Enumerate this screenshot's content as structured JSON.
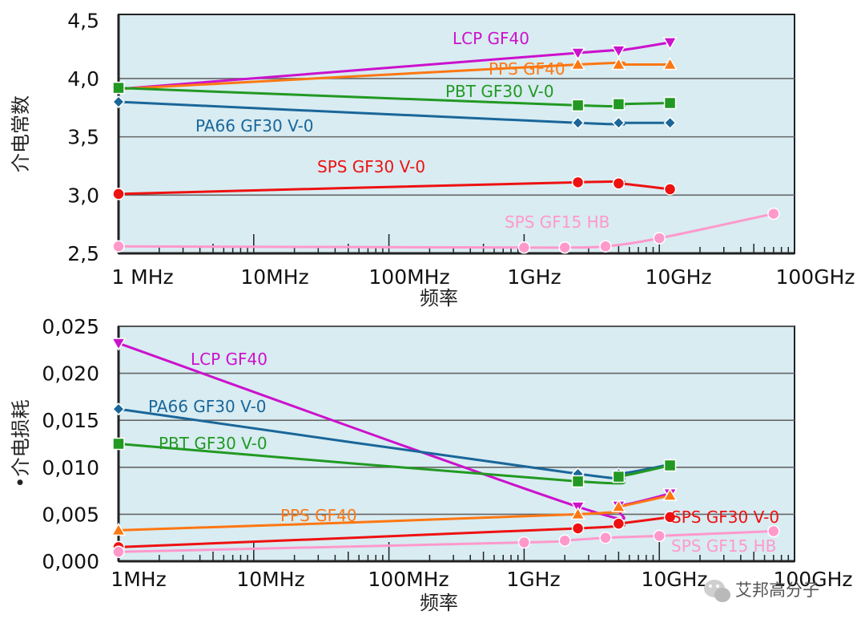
{
  "chart_data": [
    {
      "type": "line",
      "ylabel": "介电常数",
      "xlabel": "频率",
      "x_scale": "log",
      "xlim": [
        "1 MHz",
        "100GHz"
      ],
      "x_tick_labels": [
        "1 MHz",
        "10MHz",
        "100MHz",
        "1GHz",
        "10GHz",
        "100GHz"
      ],
      "y_tick_labels": [
        "2,5",
        "3,0",
        "3,5",
        "4,0",
        "4,5"
      ],
      "ylim": [
        2.5,
        4.55
      ],
      "grid": "horizontal",
      "series": [
        {
          "name": "LCP GF40",
          "color": "#cc11cc",
          "marker": "triangle-down",
          "x": [
            "1 MHz",
            "2.5GHz",
            "5GHz",
            "12GHz"
          ],
          "y": [
            3.91,
            4.22,
            4.24,
            4.31
          ],
          "marked": [
            false,
            true,
            true,
            true
          ]
        },
        {
          "name": "PPS GF40",
          "color": "#ff7711",
          "marker": "triangle-up",
          "x": [
            "1 MHz",
            "2.5GHz",
            "5GHz",
            "12GHz"
          ],
          "y": [
            3.91,
            4.12,
            4.12,
            4.12
          ],
          "marked": [
            false,
            true,
            true,
            true
          ]
        },
        {
          "name": "PBT GF30 V-0",
          "color": "#229922",
          "marker": "square",
          "x": [
            "1 MHz",
            "2.5GHz",
            "5GHz",
            "12GHz"
          ],
          "y": [
            3.92,
            3.77,
            3.78,
            3.79
          ],
          "marked": [
            true,
            true,
            true,
            true
          ]
        },
        {
          "name": "PA66 GF30 V-0",
          "color": "#1a6699",
          "marker": "diamond",
          "x": [
            "1 MHz",
            "2.5GHz",
            "5GHz",
            "12GHz"
          ],
          "y": [
            3.8,
            3.62,
            3.62,
            3.62
          ],
          "marked": [
            true,
            true,
            true,
            true
          ]
        },
        {
          "name": "SPS GF30 V-0",
          "color": "#ee1111",
          "marker": "circle",
          "x": [
            "1 MHz",
            "2.5GHz",
            "5GHz",
            "12GHz"
          ],
          "y": [
            3.01,
            3.11,
            3.1,
            3.05
          ],
          "marked": [
            true,
            true,
            true,
            true
          ]
        },
        {
          "name": "SPS GF15 HB",
          "color": "#ff99cc",
          "marker": "circle",
          "x": [
            "1 MHz",
            "1GHz",
            "2GHz",
            "4GHz",
            "10GHz",
            "70GHz"
          ],
          "y": [
            2.56,
            2.55,
            2.55,
            2.56,
            2.63,
            2.84
          ],
          "marked": [
            true,
            true,
            true,
            true,
            true,
            true
          ]
        }
      ]
    },
    {
      "type": "line",
      "ylabel": "•介电损耗",
      "xlabel": "频率",
      "x_scale": "log",
      "xlim": [
        "1MHz",
        "100GHz"
      ],
      "x_tick_labels": [
        "1MHz",
        "10MHz",
        "100MHz",
        "1GHz",
        "10GHz",
        "100GHz"
      ],
      "y_tick_labels": [
        "0,000",
        "0,005",
        "0,010",
        "0,015",
        "0,020",
        "0,025"
      ],
      "ylim": [
        0.0,
        0.025
      ],
      "grid": "horizontal",
      "series": [
        {
          "name": "LCP GF40",
          "color": "#cc11cc",
          "marker": "triangle-down",
          "x": [
            "1MHz",
            "2.5GHz",
            "5GHz",
            "12GHz"
          ],
          "y": [
            0.0232,
            0.0058,
            0.0059,
            0.0072
          ],
          "marked": [
            true,
            true,
            true,
            true
          ]
        },
        {
          "name": "PA66 GF30 V-0",
          "color": "#1a6699",
          "marker": "diamond",
          "x": [
            "1MHz",
            "2.5GHz",
            "5GHz",
            "12GHz"
          ],
          "y": [
            0.0162,
            0.0093,
            0.0093,
            0.0103
          ],
          "marked": [
            true,
            true,
            true,
            true
          ]
        },
        {
          "name": "PBT GF30 V-0",
          "color": "#229922",
          "marker": "square",
          "x": [
            "1MHz",
            "2.5GHz",
            "5GHz",
            "12GHz"
          ],
          "y": [
            0.0125,
            0.0085,
            0.009,
            0.0102
          ],
          "marked": [
            true,
            true,
            true,
            true
          ]
        },
        {
          "name": "PPS GF40",
          "color": "#ff7711",
          "marker": "triangle-up",
          "x": [
            "1MHz",
            "2.5GHz",
            "5GHz",
            "12GHz"
          ],
          "y": [
            0.0033,
            0.005,
            0.0058,
            0.007
          ],
          "marked": [
            true,
            true,
            true,
            true
          ]
        },
        {
          "name": "SPS GF30 V-0",
          "color": "#ee1111",
          "marker": "circle",
          "x": [
            "1MHz",
            "2.5GHz",
            "5GHz",
            "12GHz"
          ],
          "y": [
            0.0015,
            0.0035,
            0.004,
            0.0047
          ],
          "marked": [
            true,
            true,
            true,
            true
          ]
        },
        {
          "name": "SPS GF15 HB",
          "color": "#ff99cc",
          "marker": "circle",
          "x": [
            "1MHz",
            "1GHz",
            "2GHz",
            "4GHz",
            "10GHz",
            "70GHz"
          ],
          "y": [
            0.001,
            0.002,
            0.0022,
            0.0025,
            0.0027,
            0.0032
          ],
          "marked": [
            true,
            true,
            true,
            true,
            true,
            true
          ]
        }
      ]
    }
  ],
  "watermark": {
    "text": "艾邦高分子",
    "icon": "wechat-icon"
  }
}
